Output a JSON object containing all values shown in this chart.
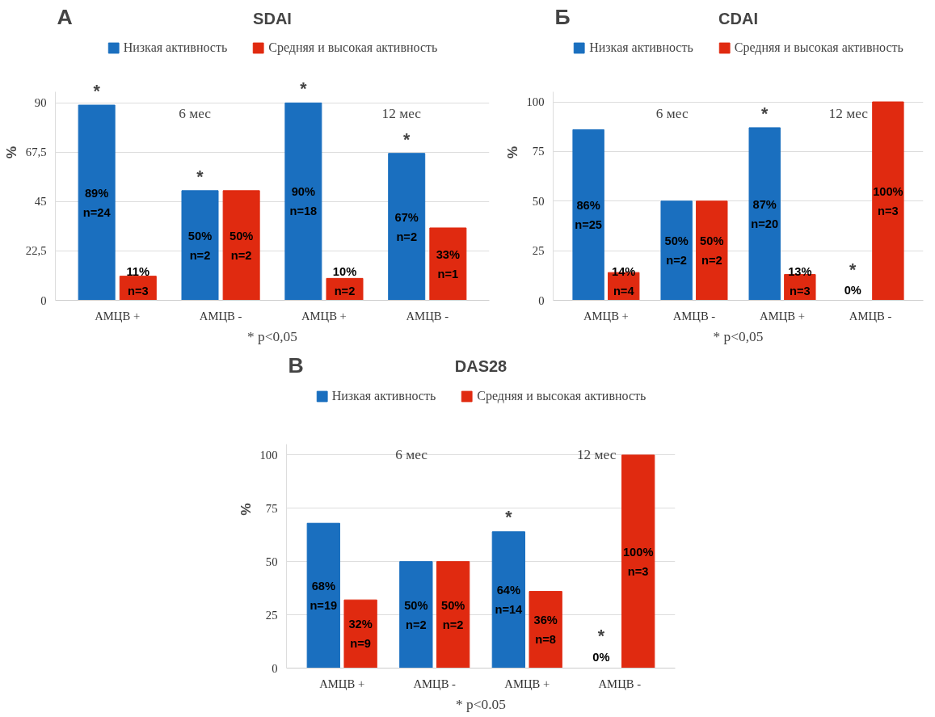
{
  "chart_data": [
    {
      "type": "bar",
      "title": "SDAI",
      "ylabel": "%",
      "categories": [
        "АМЦВ +",
        "АМЦВ -",
        "АМЦВ +",
        "АМЦВ -"
      ],
      "ylim": [
        0,
        95
      ],
      "yticks": [
        0,
        {
          "value": 22.5,
          "label": "22,5"
        },
        45,
        {
          "value": 67.5,
          "label": "67,5"
        },
        90
      ],
      "grid": "y",
      "legend": "top",
      "series": [
        {
          "name": "Низкая активность",
          "color": "#1a6fbf",
          "values": [
            89,
            50,
            90,
            67
          ],
          "value_labels": [
            "89%\nn=24",
            "50%\nn=2",
            "90%\nn=18",
            "67%\nn=2"
          ]
        },
        {
          "name": "Средняя и высокая активность",
          "color": "#e02a10",
          "values": [
            11,
            50,
            10,
            33
          ],
          "value_labels": [
            "11%\nn=3",
            "50%\nn=2",
            "10%\nn=2",
            "33%\nn=1"
          ]
        }
      ],
      "annotations": [
        "А",
        "6 мес",
        "12 мес",
        "*",
        "*",
        "*",
        "*",
        "* p<0,05"
      ]
    },
    {
      "type": "bar",
      "title": "CDAI",
      "ylabel": "%",
      "categories": [
        "АМЦВ +",
        "АМЦВ -",
        "АМЦВ +",
        "АМЦВ -"
      ],
      "ylim": [
        0,
        105
      ],
      "yticks": [
        0,
        25,
        50,
        75,
        100
      ],
      "grid": "y",
      "legend": "top",
      "series": [
        {
          "name": "Низкая активность",
          "color": "#1a6fbf",
          "values": [
            86,
            50,
            87,
            0
          ],
          "value_labels": [
            "86%\nn=25",
            "50%\nn=2",
            "87%\nn=20",
            "0%"
          ]
        },
        {
          "name": "Средняя и высокая активность",
          "color": "#e02a10",
          "values": [
            14,
            50,
            13,
            100
          ],
          "value_labels": [
            "14%\nn=4",
            "50%\nn=2",
            "13%\nn=3",
            "100%\nn=3"
          ]
        }
      ],
      "annotations": [
        "Б",
        "6 мес",
        "12 мес",
        "*",
        "*",
        "* p<0,05"
      ]
    },
    {
      "type": "bar",
      "title": "DAS28",
      "ylabel": "%",
      "categories": [
        "АМЦВ +",
        "АМЦВ -",
        "АМЦВ +",
        "АМЦВ -"
      ],
      "ylim": [
        0,
        105
      ],
      "yticks": [
        0,
        25,
        50,
        75,
        100
      ],
      "grid": "y",
      "legend": "top",
      "series": [
        {
          "name": "Низкая активность",
          "color": "#1a6fbf",
          "values": [
            68,
            50,
            64,
            0
          ],
          "value_labels": [
            "68%\nn=19",
            "50%\nn=2",
            "64%\nn=14",
            "0%"
          ]
        },
        {
          "name": "Средняя и высокая активность",
          "color": "#e02a10",
          "values": [
            32,
            50,
            36,
            100
          ],
          "value_labels": [
            "32%\nn=9",
            "50%\nn=2",
            "36%\nn=8",
            "100%\nn=3"
          ]
        }
      ],
      "annotations": [
        "В",
        "6 мес",
        "12 мес",
        "*",
        "*",
        "* p<0.05"
      ]
    }
  ]
}
